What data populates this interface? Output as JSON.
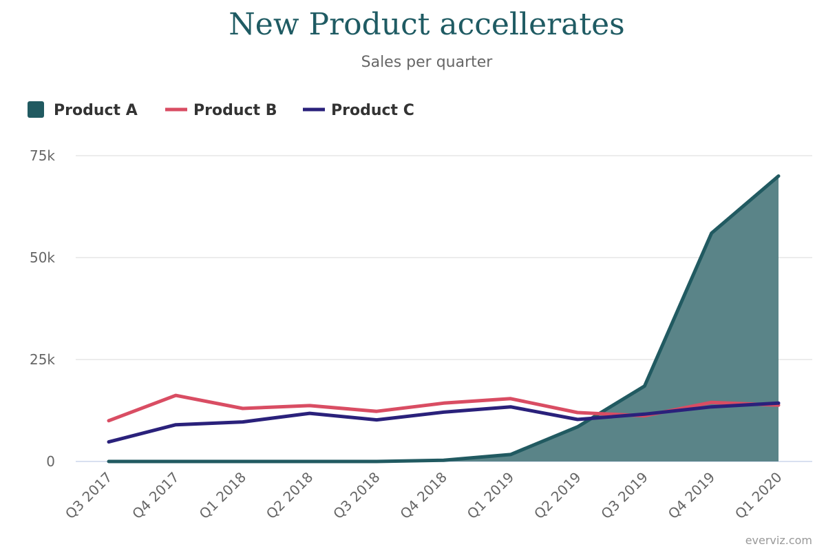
{
  "chart_data": {
    "type": "area",
    "title": "New Product accellerates",
    "subtitle": "Sales per quarter",
    "xlabel": "",
    "ylabel": "",
    "categories": [
      "Q3 2017",
      "Q4 2017",
      "Q1 2018",
      "Q2 2018",
      "Q3 2018",
      "Q4 2018",
      "Q1 2019",
      "Q2 2019",
      "Q3 2019",
      "Q4 2019",
      "Q1 2020"
    ],
    "ylim": [
      0,
      75000
    ],
    "yticks": [
      0,
      25000,
      50000,
      75000
    ],
    "ytick_labels": [
      "0",
      "25k",
      "50k",
      "75k"
    ],
    "grid": true,
    "legend_position": "top-left",
    "series": [
      {
        "name": "Product A",
        "kind": "area",
        "color": "#215a61",
        "fill": "#5a8488",
        "values": [
          0,
          0,
          0,
          0,
          0,
          300,
          1700,
          8500,
          18500,
          56000,
          70000
        ]
      },
      {
        "name": "Product B",
        "kind": "line",
        "color": "#d94d63",
        "values": [
          10000,
          16200,
          13000,
          13700,
          12300,
          14300,
          15400,
          12000,
          11200,
          14500,
          13800
        ]
      },
      {
        "name": "Product C",
        "kind": "line",
        "color": "#2a217b",
        "values": [
          4800,
          9000,
          9700,
          11800,
          10200,
          12100,
          13400,
          10300,
          11600,
          13400,
          14300
        ]
      }
    ],
    "credit": "everviz.com"
  }
}
